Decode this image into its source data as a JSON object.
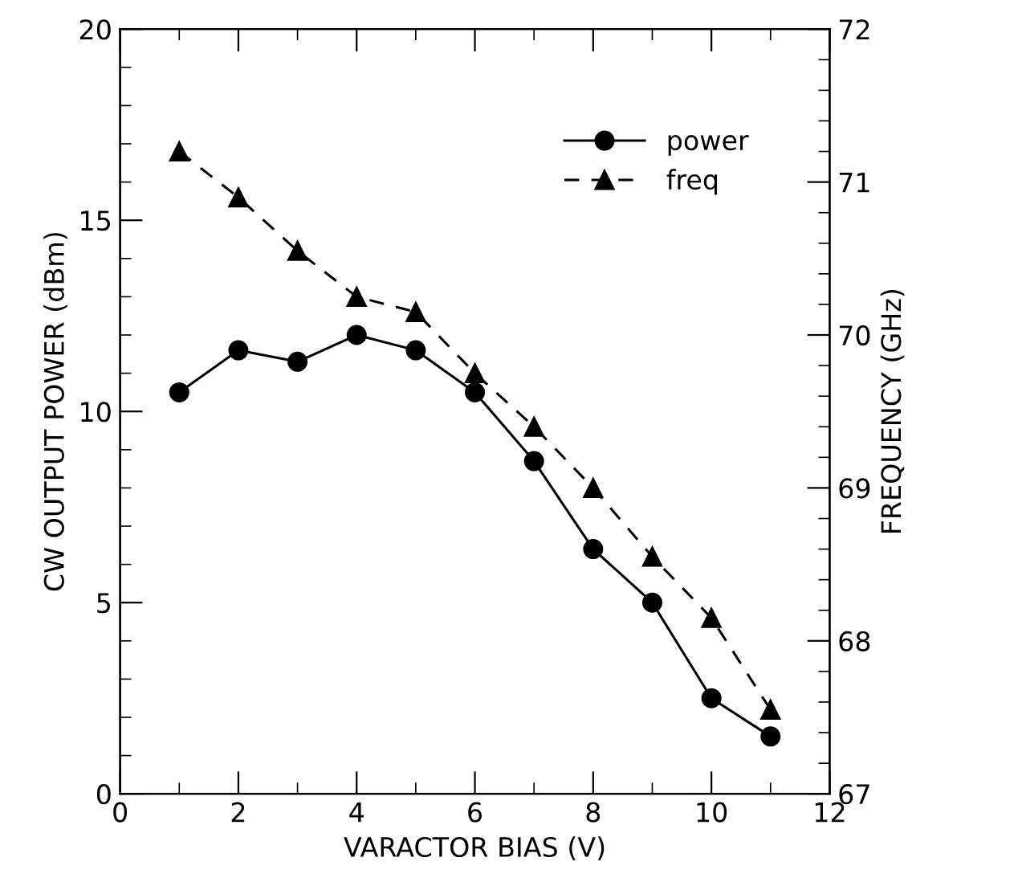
{
  "chart_data": {
    "type": "line",
    "xlabel": "VARACTOR BIAS (V)",
    "ylabel": "CW OUTPUT POWER (dBm)",
    "y2label": "FREQUENCY (GHz)",
    "x": [
      1,
      2,
      3,
      4,
      5,
      6,
      7,
      8,
      9,
      10,
      11
    ],
    "series": [
      {
        "name": "power",
        "color": "#000000",
        "marker": "circle",
        "line_style": "solid",
        "values": [
          10.5,
          11.6,
          11.3,
          12.0,
          11.6,
          10.5,
          8.7,
          6.4,
          5.0,
          2.5,
          1.5
        ]
      },
      {
        "name": "freq",
        "color": "#000000",
        "marker": "triangle",
        "line_style": "dashed",
        "axis": "y2",
        "values": [
          71.2,
          70.9,
          70.55,
          70.25,
          70.15,
          69.75,
          69.4,
          69.0,
          68.55,
          68.15,
          67.55
        ]
      }
    ],
    "xlim": [
      0,
      12
    ],
    "xticks": [
      0,
      2,
      4,
      6,
      8,
      10,
      12
    ],
    "ylim": [
      0,
      20
    ],
    "yticks": [
      0,
      5,
      10,
      15,
      20
    ],
    "y2lim": [
      67,
      72
    ],
    "y2ticks": [
      67,
      68,
      69,
      70,
      71,
      72
    ],
    "legend": "top right",
    "grid": false
  }
}
